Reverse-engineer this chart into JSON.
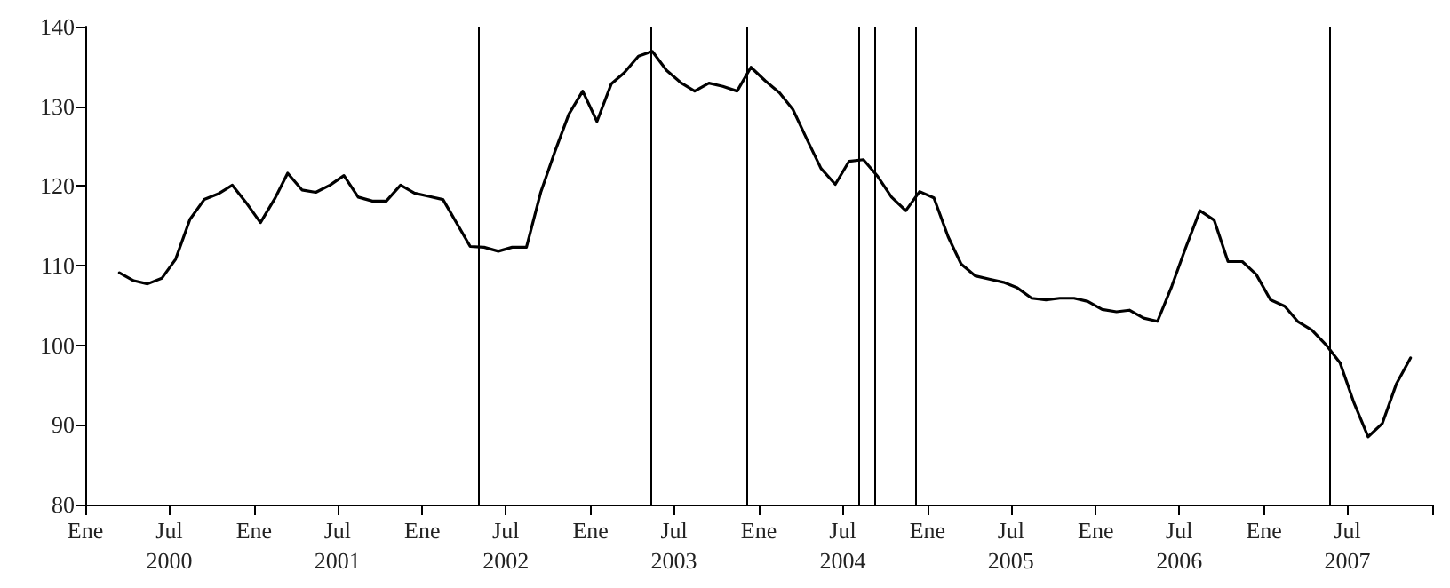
{
  "chart_data": {
    "type": "line",
    "x": [
      "2000-03-15",
      "2000-04-15",
      "2000-05-15",
      "2000-06-15",
      "2000-07-15",
      "2000-08-15",
      "2000-09-15",
      "2000-10-15",
      "2000-11-15",
      "2000-12-15",
      "2001-01-15",
      "2001-02-15",
      "2001-03-15",
      "2001-04-15",
      "2001-05-15",
      "2001-06-15",
      "2001-07-15",
      "2001-08-15",
      "2001-09-15",
      "2001-10-15",
      "2001-11-15",
      "2001-12-15",
      "2002-01-15",
      "2002-02-15",
      "2002-03-15",
      "2002-04-15",
      "2002-05-15",
      "2002-06-15",
      "2002-07-15",
      "2002-08-15",
      "2002-09-15",
      "2002-10-15",
      "2002-11-15",
      "2002-12-15",
      "2003-01-15",
      "2003-02-15",
      "2003-03-15",
      "2003-04-15",
      "2003-05-15",
      "2003-06-15",
      "2003-07-15",
      "2003-08-15",
      "2003-09-15",
      "2003-10-15",
      "2003-11-15",
      "2003-12-15",
      "2004-01-15",
      "2004-02-15",
      "2004-03-15",
      "2004-04-15",
      "2004-05-15",
      "2004-06-15",
      "2004-07-15",
      "2004-08-15",
      "2004-09-15",
      "2004-10-15",
      "2004-11-15",
      "2004-12-15",
      "2005-01-15",
      "2005-02-15",
      "2005-03-15",
      "2005-04-15",
      "2005-05-15",
      "2005-06-15",
      "2005-07-15",
      "2005-08-15",
      "2005-09-15",
      "2005-10-15",
      "2005-11-15",
      "2005-12-15",
      "2006-01-15",
      "2006-02-15",
      "2006-03-15",
      "2006-04-15",
      "2006-05-15",
      "2006-06-15",
      "2006-07-15",
      "2006-08-15",
      "2006-09-15",
      "2006-10-15",
      "2006-11-15",
      "2006-12-15",
      "2007-01-15",
      "2007-02-15",
      "2007-03-15",
      "2007-04-15",
      "2007-05-15",
      "2007-06-15",
      "2007-07-15",
      "2007-08-15",
      "2007-09-15",
      "2007-10-15",
      "2007-11-15"
    ],
    "series": [
      {
        "color": "#000000",
        "values": [
          109.1,
          108.1,
          107.7,
          108.4,
          110.8,
          115.8,
          118.3,
          119.0,
          120.1,
          117.9,
          115.4,
          118.4,
          121.6,
          119.5,
          119.2,
          120.1,
          121.3,
          118.6,
          118.1,
          118.1,
          120.1,
          119.1,
          118.7,
          118.3,
          115.5,
          112.4,
          112.3,
          111.8,
          112.3,
          112.3,
          119.2,
          124.2,
          129.0,
          131.9,
          128.1,
          132.8,
          134.2,
          136.3,
          136.9,
          134.5,
          133.0,
          131.9,
          132.9,
          132.5,
          131.9,
          134.9,
          133.2,
          131.7,
          129.6,
          125.8,
          122.2,
          120.2,
          123.1,
          123.3,
          121.2,
          118.6,
          116.9,
          119.3,
          118.5,
          113.6,
          110.2,
          108.7,
          108.3,
          107.9,
          107.2,
          105.9,
          105.7,
          105.9,
          105.9,
          105.5,
          104.5,
          104.2,
          104.4,
          103.4,
          103.0,
          107.4,
          112.2,
          116.9,
          115.7,
          110.5,
          110.5,
          108.9,
          105.7,
          104.9,
          103.0,
          101.9,
          100.1,
          97.8,
          92.8,
          88.5,
          90.2,
          95.1,
          98.4
        ]
      }
    ],
    "xlim": [
      "2000-01",
      "2008-01"
    ],
    "xticks": [
      {
        "value": "2000-01",
        "label": "Ene"
      },
      {
        "value": "2000-07",
        "label": "Jul\n2000"
      },
      {
        "value": "2001-01",
        "label": "Ene"
      },
      {
        "value": "2001-07",
        "label": "Jul\n2001"
      },
      {
        "value": "2002-01",
        "label": "Ene"
      },
      {
        "value": "2002-07",
        "label": "Jul\n2002"
      },
      {
        "value": "2003-01",
        "label": "Ene"
      },
      {
        "value": "2003-07",
        "label": "Jul\n2003"
      },
      {
        "value": "2004-01",
        "label": "Ene"
      },
      {
        "value": "2004-07",
        "label": "Jul\n2004"
      },
      {
        "value": "2005-01",
        "label": "Ene"
      },
      {
        "value": "2005-07",
        "label": "Jul\n2005"
      },
      {
        "value": "2006-01",
        "label": "Ene"
      },
      {
        "value": "2006-07",
        "label": "Jul\n2006"
      },
      {
        "value": "2007-01",
        "label": "Ene"
      },
      {
        "value": "2007-07",
        "label": "Jul\n2007"
      },
      {
        "value": "2008-01",
        "label": null
      }
    ],
    "ylim": [
      80,
      140
    ],
    "yticks": [
      80,
      90,
      100,
      110,
      120,
      130,
      140
    ],
    "ref_lines": [
      {
        "axis": "x",
        "value": "2002-05-01",
        "color": "#000000"
      },
      {
        "axis": "x",
        "value": "2003-05-10",
        "color": "#000000"
      },
      {
        "axis": "x",
        "value": "2003-12-05",
        "color": "#000000"
      },
      {
        "axis": "x",
        "value": "2004-08-04",
        "color": "#000000"
      },
      {
        "axis": "x",
        "value": "2004-09-08",
        "color": "#000000"
      },
      {
        "axis": "x",
        "value": "2004-12-05",
        "color": "#000000"
      },
      {
        "axis": "x",
        "value": "2007-05-22",
        "color": "#000000"
      }
    ],
    "grid": false,
    "marker": "none",
    "line_style": "solid"
  }
}
